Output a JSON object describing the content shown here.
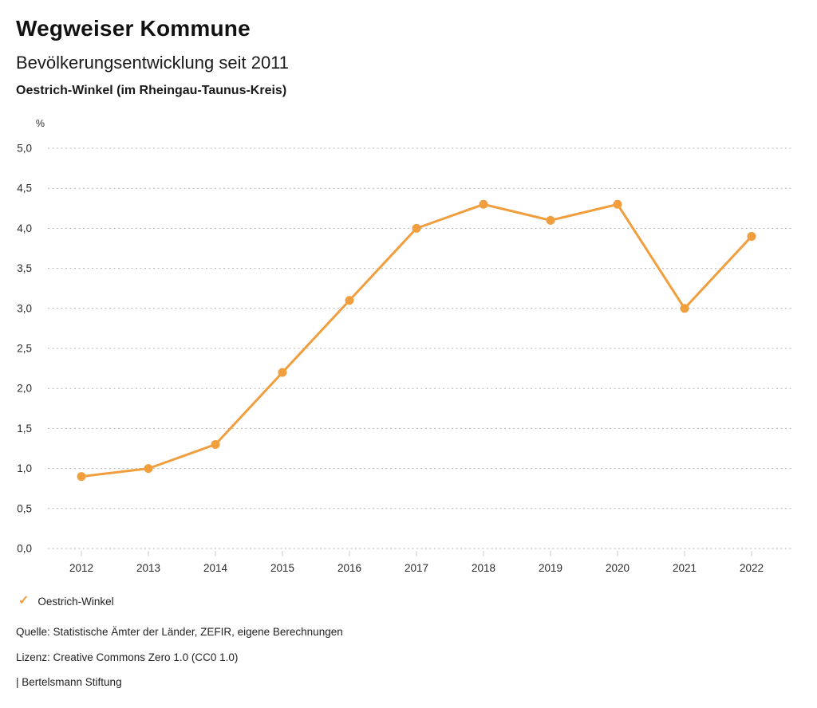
{
  "header": {
    "title": "Wegweiser Kommune",
    "subtitle": "Bevölkerungsentwicklung seit 2011",
    "region_line": "Oestrich-Winkel (im Rheingau-Taunus-Kreis)"
  },
  "chart_data": {
    "type": "line",
    "title": "Bevölkerungsentwicklung seit 2011",
    "subtitle_region": "Oestrich-Winkel (im Rheingau-Taunus-Kreis)",
    "unit_label": "%",
    "categories": [
      "2012",
      "2013",
      "2014",
      "2015",
      "2016",
      "2017",
      "2018",
      "2019",
      "2020",
      "2021",
      "2022"
    ],
    "series": [
      {
        "name": "Oestrich-Winkel",
        "values": [
          0.9,
          1.0,
          1.3,
          2.2,
          3.1,
          4.0,
          4.3,
          4.1,
          4.3,
          3.0,
          3.9
        ]
      }
    ],
    "ylim": [
      0,
      5
    ],
    "ytick_values": [
      0,
      0.5,
      1,
      1.5,
      2,
      2.5,
      3,
      3.5,
      4,
      4.5,
      5
    ],
    "ytick_labels": [
      "0,0",
      "0,5",
      "1,0",
      "1,5",
      "2,0",
      "2,5",
      "3,0",
      "3,5",
      "4,0",
      "4,5",
      "5,0"
    ],
    "grid": "horizontal dotted",
    "line_color": "#F09E3E",
    "marker": "circle",
    "legend_position": "bottom-left"
  },
  "legend": {
    "check_icon": "✓",
    "label": "Oestrich-Winkel"
  },
  "footer": {
    "source": "Quelle: Statistische Ämter der Länder, ZEFIR, eigene Berechnungen",
    "license": "Lizenz: Creative Commons Zero 1.0 (CC0 1.0)",
    "attribution": "| Bertelsmann Stiftung"
  }
}
